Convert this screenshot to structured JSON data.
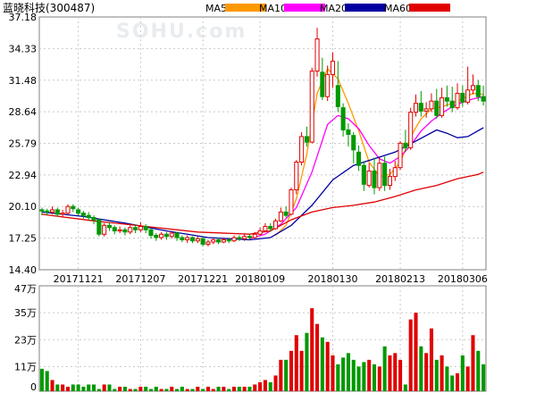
{
  "title": "蓝晓科技(300487)",
  "watermark": "SOHU.com",
  "legend": [
    {
      "label": "MA5",
      "color": "#ff9900"
    },
    {
      "label": "MA10",
      "color": "#ff00ff"
    },
    {
      "label": "MA20",
      "color": "#0000a0"
    },
    {
      "label": "MA60",
      "color": "#e00000"
    }
  ],
  "colors": {
    "up": "#e00000",
    "down": "#009900",
    "grid": "#c8c8c8",
    "axis": "#808080"
  },
  "chart_data": [
    {
      "type": "candlestick",
      "price_ticks": [
        "37.18",
        "34.33",
        "31.48",
        "28.64",
        "25.79",
        "22.94",
        "20.10",
        "17.25",
        "14.40"
      ],
      "ylim": [
        14.4,
        37.18
      ],
      "x_tick_labels": [
        {
          "label": "20171121",
          "index": 7
        },
        {
          "label": "20171207",
          "index": 19
        },
        {
          "label": "20171221",
          "index": 31
        },
        {
          "label": "20180109",
          "index": 42
        },
        {
          "label": "20180130",
          "index": 56
        },
        {
          "label": "20180213",
          "index": 69
        },
        {
          "label": "20180306",
          "index": 81
        }
      ],
      "candles": [
        [
          19.8,
          19.7,
          20.0,
          19.3
        ],
        [
          19.7,
          19.6,
          19.9,
          19.3
        ],
        [
          19.6,
          19.8,
          20.1,
          19.4
        ],
        [
          19.8,
          19.4,
          20.0,
          19.2
        ],
        [
          19.4,
          19.5,
          19.8,
          19.1
        ],
        [
          19.5,
          20.1,
          20.3,
          19.4
        ],
        [
          20.1,
          19.9,
          20.3,
          19.6
        ],
        [
          19.8,
          19.5,
          20.0,
          19.3
        ],
        [
          19.5,
          19.3,
          19.7,
          19.0
        ],
        [
          19.3,
          19.1,
          19.6,
          18.8
        ],
        [
          19.1,
          18.9,
          19.3,
          18.5
        ],
        [
          18.9,
          17.6,
          19.0,
          17.4
        ],
        [
          17.6,
          18.4,
          18.6,
          17.4
        ],
        [
          18.4,
          18.2,
          18.7,
          17.9
        ],
        [
          18.2,
          17.9,
          18.4,
          17.6
        ],
        [
          17.9,
          18.0,
          18.3,
          17.7
        ],
        [
          18.0,
          17.8,
          18.2,
          17.5
        ],
        [
          17.8,
          18.2,
          18.4,
          17.6
        ],
        [
          18.2,
          18.0,
          18.5,
          17.7
        ],
        [
          18.0,
          18.3,
          18.7,
          17.8
        ],
        [
          18.3,
          18.0,
          18.5,
          17.7
        ],
        [
          18.0,
          17.5,
          18.1,
          17.2
        ],
        [
          17.5,
          17.3,
          17.7,
          17.0
        ],
        [
          17.3,
          17.6,
          17.8,
          17.1
        ],
        [
          17.6,
          17.4,
          17.8,
          17.1
        ],
        [
          17.4,
          17.7,
          17.9,
          17.2
        ],
        [
          17.7,
          17.3,
          17.8,
          17.0
        ],
        [
          17.3,
          17.1,
          17.5,
          16.9
        ],
        [
          17.1,
          17.3,
          17.5,
          16.8
        ],
        [
          17.3,
          17.0,
          17.4,
          16.8
        ],
        [
          17.0,
          17.2,
          17.4,
          16.8
        ],
        [
          17.2,
          16.7,
          17.3,
          16.5
        ],
        [
          16.7,
          16.9,
          17.1,
          16.5
        ],
        [
          16.9,
          17.1,
          17.2,
          16.7
        ],
        [
          17.1,
          16.9,
          17.3,
          16.7
        ],
        [
          16.9,
          17.1,
          17.3,
          16.8
        ],
        [
          17.1,
          17.0,
          17.3,
          16.8
        ],
        [
          17.0,
          17.3,
          17.5,
          16.9
        ],
        [
          17.3,
          17.2,
          17.5,
          17.0
        ],
        [
          17.2,
          17.4,
          17.6,
          17.0
        ],
        [
          17.4,
          17.3,
          17.6,
          17.1
        ],
        [
          17.3,
          17.6,
          17.8,
          17.2
        ],
        [
          17.6,
          17.9,
          18.2,
          17.5
        ],
        [
          17.9,
          18.3,
          18.6,
          17.8
        ],
        [
          18.3,
          18.1,
          18.6,
          17.8
        ],
        [
          18.1,
          18.8,
          19.0,
          18.0
        ],
        [
          18.8,
          19.6,
          20.0,
          18.7
        ],
        [
          19.6,
          19.3,
          20.1,
          19.1
        ],
        [
          19.4,
          21.6,
          21.8,
          19.3
        ],
        [
          21.6,
          24.1,
          24.3,
          21.2
        ],
        [
          24.1,
          26.4,
          26.8,
          23.8
        ],
        [
          26.4,
          25.9,
          27.3,
          25.5
        ],
        [
          25.9,
          32.3,
          32.6,
          25.8
        ],
        [
          32.3,
          35.2,
          36.2,
          31.8
        ],
        [
          32.2,
          30.0,
          33.5,
          29.7
        ],
        [
          30.0,
          32.0,
          32.8,
          29.6
        ],
        [
          32.0,
          33.2,
          34.0,
          30.8
        ],
        [
          31.0,
          29.1,
          33.2,
          28.6
        ],
        [
          29.0,
          27.0,
          29.4,
          26.4
        ],
        [
          27.0,
          26.6,
          27.6,
          25.5
        ],
        [
          26.5,
          25.2,
          26.8,
          24.0
        ],
        [
          25.0,
          23.8,
          25.6,
          23.3
        ],
        [
          23.8,
          22.1,
          24.2,
          21.5
        ],
        [
          22.0,
          23.3,
          24.0,
          21.8
        ],
        [
          23.3,
          21.8,
          24.5,
          21.2
        ],
        [
          21.8,
          24.0,
          24.5,
          21.5
        ],
        [
          24.0,
          22.0,
          24.6,
          21.5
        ],
        [
          22.0,
          22.8,
          23.5,
          21.6
        ],
        [
          22.8,
          23.6,
          24.2,
          22.4
        ],
        [
          23.6,
          25.8,
          26.0,
          23.4
        ],
        [
          25.8,
          25.4,
          27.0,
          25.0
        ],
        [
          25.4,
          28.6,
          29.0,
          25.2
        ],
        [
          28.6,
          29.4,
          30.2,
          28.2
        ],
        [
          29.4,
          28.7,
          30.5,
          28.2
        ],
        [
          28.7,
          28.9,
          29.5,
          28.1
        ],
        [
          28.9,
          29.6,
          30.3,
          28.6
        ],
        [
          29.6,
          28.3,
          30.7,
          28.0
        ],
        [
          28.3,
          29.9,
          30.8,
          28.1
        ],
        [
          29.9,
          29.6,
          31.0,
          29.1
        ],
        [
          29.6,
          29.0,
          30.9,
          28.6
        ],
        [
          29.0,
          30.3,
          31.2,
          28.8
        ],
        [
          30.3,
          29.5,
          31.0,
          29.1
        ],
        [
          29.5,
          30.6,
          32.7,
          29.3
        ],
        [
          30.6,
          31.0,
          32.0,
          30.2
        ],
        [
          31.0,
          30.0,
          31.5,
          29.6
        ],
        [
          30.0,
          29.6,
          31.0,
          29.2
        ]
      ],
      "ma": {
        "MA5": [
          [
            45,
            17.5
          ],
          [
            47,
            18.4
          ],
          [
            49,
            20.8
          ],
          [
            51,
            24.8
          ],
          [
            53,
            30.3
          ],
          [
            55,
            32.5
          ],
          [
            57,
            31.6
          ],
          [
            59,
            29.4
          ],
          [
            61,
            26.9
          ],
          [
            63,
            24.1
          ],
          [
            65,
            22.8
          ],
          [
            67,
            23.0
          ],
          [
            69,
            24.1
          ],
          [
            71,
            26.4
          ],
          [
            73,
            28.0
          ],
          [
            75,
            28.9
          ],
          [
            77,
            29.1
          ],
          [
            79,
            29.4
          ],
          [
            81,
            29.8
          ],
          [
            83,
            30.3
          ],
          [
            85,
            30.2
          ]
        ],
        "MA10": [
          [
            40,
            17.2
          ],
          [
            43,
            17.6
          ],
          [
            46,
            18.5
          ],
          [
            49,
            20.0
          ],
          [
            52,
            23.2
          ],
          [
            55,
            27.5
          ],
          [
            57,
            28.3
          ],
          [
            59,
            28.0
          ],
          [
            61,
            27.1
          ],
          [
            63,
            25.6
          ],
          [
            65,
            24.4
          ],
          [
            67,
            24.0
          ],
          [
            69,
            24.6
          ],
          [
            71,
            25.6
          ],
          [
            73,
            26.9
          ],
          [
            75,
            27.8
          ],
          [
            77,
            28.5
          ],
          [
            79,
            29.1
          ],
          [
            81,
            29.5
          ],
          [
            83,
            29.8
          ],
          [
            85,
            30.0
          ]
        ],
        "MA20": [
          [
            0,
            19.6
          ],
          [
            8,
            19.2
          ],
          [
            16,
            18.6
          ],
          [
            24,
            17.9
          ],
          [
            32,
            17.3
          ],
          [
            40,
            17.1
          ],
          [
            44,
            17.3
          ],
          [
            48,
            18.4
          ],
          [
            52,
            20.2
          ],
          [
            56,
            22.5
          ],
          [
            60,
            23.8
          ],
          [
            64,
            24.4
          ],
          [
            68,
            25.0
          ],
          [
            72,
            26.0
          ],
          [
            76,
            27.0
          ],
          [
            78,
            26.7
          ],
          [
            80,
            26.3
          ],
          [
            82,
            26.4
          ],
          [
            85,
            27.2
          ]
        ],
        "MA60": [
          [
            0,
            19.4
          ],
          [
            10,
            18.8
          ],
          [
            20,
            18.3
          ],
          [
            30,
            17.8
          ],
          [
            40,
            17.6
          ],
          [
            44,
            17.9
          ],
          [
            48,
            18.9
          ],
          [
            52,
            19.6
          ],
          [
            56,
            20.0
          ],
          [
            60,
            20.2
          ],
          [
            64,
            20.5
          ],
          [
            68,
            21.0
          ],
          [
            72,
            21.6
          ],
          [
            76,
            22.0
          ],
          [
            80,
            22.6
          ],
          [
            84,
            23.0
          ],
          [
            85,
            23.2
          ]
        ]
      }
    },
    {
      "type": "bar",
      "title": "volume",
      "volume_ticks": [
        "47万",
        "35万",
        "23万",
        "11万",
        "0"
      ],
      "ylim": [
        0,
        47
      ],
      "unit": "万",
      "volumes": [
        10,
        9,
        5,
        3,
        3,
        2,
        3,
        3,
        2,
        3,
        3,
        1,
        3,
        3,
        1,
        2,
        2,
        1,
        1,
        2,
        2,
        1,
        2,
        1,
        1,
        2,
        1,
        2,
        1,
        1,
        2,
        1,
        2,
        1,
        2,
        2,
        1,
        2,
        2,
        2,
        2,
        3,
        4,
        5,
        4,
        7,
        14,
        14,
        18,
        25,
        18,
        26,
        37,
        30,
        24,
        22,
        16,
        12,
        15,
        17,
        14,
        11,
        13,
        14,
        12,
        11,
        20,
        16,
        17,
        14,
        3,
        32,
        35,
        20,
        17,
        28,
        14,
        16,
        11,
        7,
        8,
        16,
        11,
        25,
        18,
        12
      ]
    }
  ]
}
